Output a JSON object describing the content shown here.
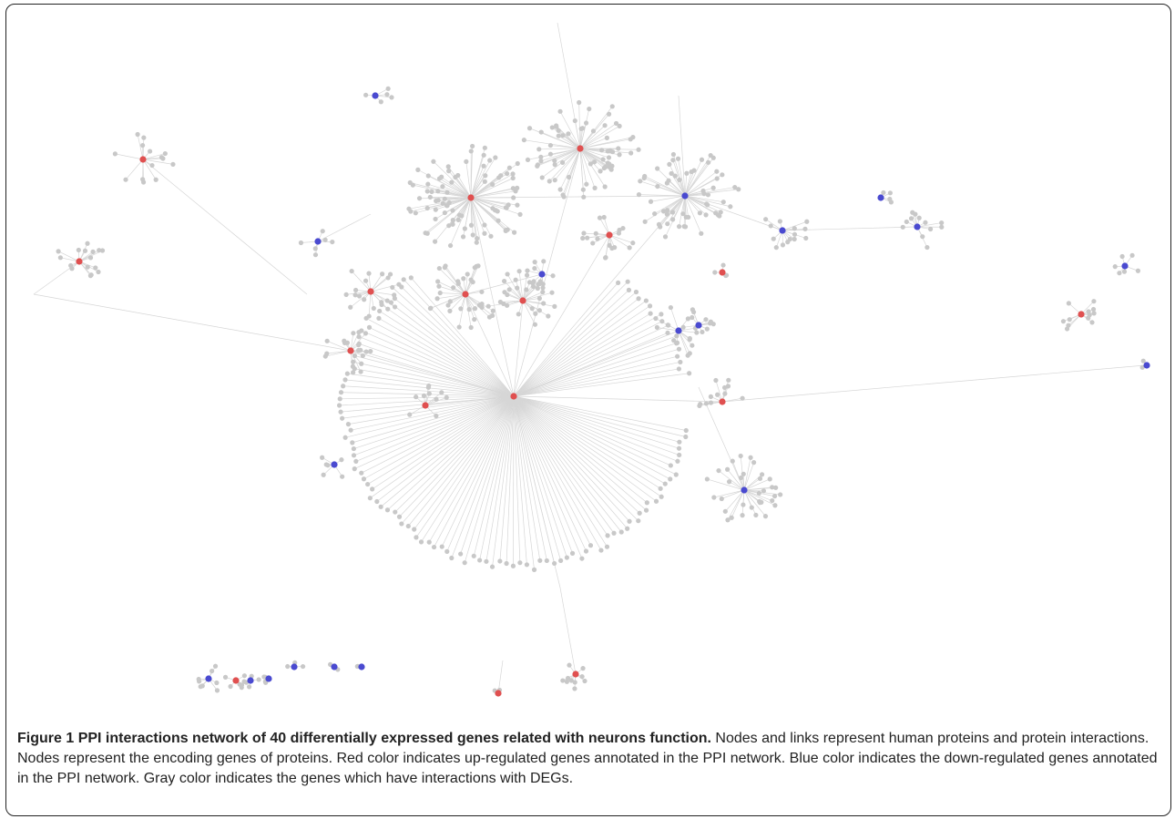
{
  "figure": {
    "label": "Figure 1",
    "title": "PPI interactions network of 40 differentially expressed genes related with neurons function.",
    "caption": "Nodes and links represent human proteins and protein interactions. Nodes represent the encoding genes of proteins. Red color indicates up-regulated genes annotated in the PPI network. Blue color indicates the down-regulated genes annotated in the PPI network. Gray color indicates the genes which have interactions with DEGs."
  },
  "colors": {
    "up_regulated": "#e05050",
    "down_regulated": "#4a4ad0",
    "interactor": "#c8c8c8",
    "edge": "#d6d6d6"
  }
}
